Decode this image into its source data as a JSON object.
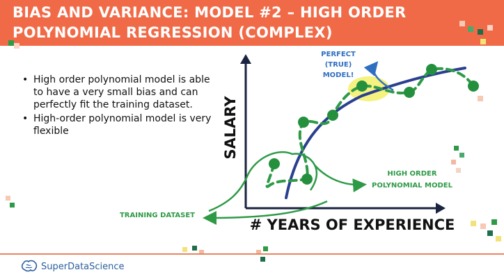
{
  "header": {
    "title_line1": "BIAS AND VARIANCE: MODEL #2 – HIGH ORDER",
    "title_line2": "POLYNOMIAL REGRESSION (COMPLEX)"
  },
  "bullets": [
    "High order polynomial model is able to have a very small bias and can perfectly fit the training dataset.",
    "High-order polynomial model is very flexible"
  ],
  "diagram": {
    "y_axis_label": "SALARY",
    "x_axis_label": "# YEARS OF EXPERIENCE",
    "annotation_true_model": [
      "PERFECT",
      "(TRUE)",
      "MODEL!"
    ],
    "annotation_high_order": [
      "HIGH ORDER",
      "POLYNOMIAL MODEL"
    ],
    "annotation_training": "TRAINING DATASET"
  },
  "brand": {
    "name": "SuperDataScience",
    "icon": "brain-icon"
  },
  "colors": {
    "header": "#f16a47",
    "model_green": "#2e9a47",
    "point_green": "#24903d",
    "true_model_blue": "#2a3f8f",
    "annotation_blue": "#2f6fc1",
    "highlight": "#f3f06a"
  }
}
